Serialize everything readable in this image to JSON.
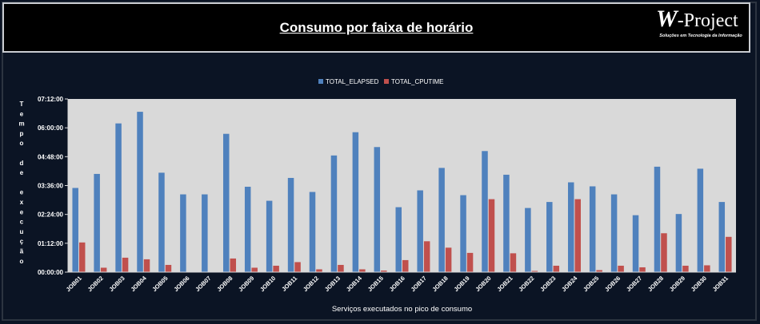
{
  "header": {
    "title": "Consumo por faixa de horário",
    "logo_main": "W-Project",
    "logo_sub": "Soluções em Tecnologia da Informação"
  },
  "colors": {
    "background": "#0b1424",
    "plot_bg": "#d9d9d9",
    "elapsed": "#4f81bd",
    "cputime": "#c0504d"
  },
  "chart_data": {
    "type": "bar",
    "xlabel": "Serviços executados no pico de consumo",
    "ylabel": "Tempo de execução",
    "ylabel_chars": [
      "T",
      "e",
      "m",
      "p",
      "o",
      "",
      "d",
      "e",
      "",
      "e",
      "x",
      "e",
      "c",
      "u",
      "ç",
      "ã",
      "o"
    ],
    "y_unit": "minutes",
    "ylim": [
      0,
      432
    ],
    "yticks": [
      0,
      72,
      144,
      216,
      288,
      360,
      432
    ],
    "ytick_labels": [
      "00:00:00",
      "01:12:00",
      "02:24:00",
      "03:36:00",
      "04:48:00",
      "06:00:00",
      "07:12:00"
    ],
    "grid": false,
    "legend_position": "top-center",
    "categories": [
      "JOB01",
      "JOB02",
      "JOB03",
      "JOB04",
      "JOB05",
      "JOB06",
      "JOB07",
      "JOB08",
      "JOB09",
      "JOB10",
      "JOB11",
      "JOB12",
      "JOB13",
      "JOB14",
      "JOB15",
      "JOB16",
      "JOB17",
      "JOB18",
      "JOB19",
      "JOB20",
      "JOB21",
      "JOB22",
      "JOB23",
      "JOB24",
      "JOB25",
      "JOB26",
      "JOB27",
      "JOB28",
      "JOB29",
      "JOB30",
      "JOB31"
    ],
    "series": [
      {
        "name": "TOTAL_ELAPSED",
        "color": "#4f81bd",
        "values": [
          210,
          245,
          371,
          400,
          248,
          194,
          194,
          345,
          213,
          178,
          235,
          200,
          291,
          349,
          312,
          162,
          204,
          260,
          192,
          302,
          243,
          160,
          175,
          224,
          214,
          194,
          142,
          263,
          145,
          258,
          175
        ]
      },
      {
        "name": "TOTAL_CPUTIME",
        "color": "#c0504d",
        "values": [
          74,
          11,
          36,
          32,
          18,
          0,
          0,
          34,
          11,
          16,
          25,
          7,
          18,
          7,
          4,
          30,
          77,
          61,
          48,
          182,
          47,
          3,
          16,
          182,
          5,
          16,
          12,
          97,
          16,
          17,
          88
        ]
      }
    ]
  }
}
